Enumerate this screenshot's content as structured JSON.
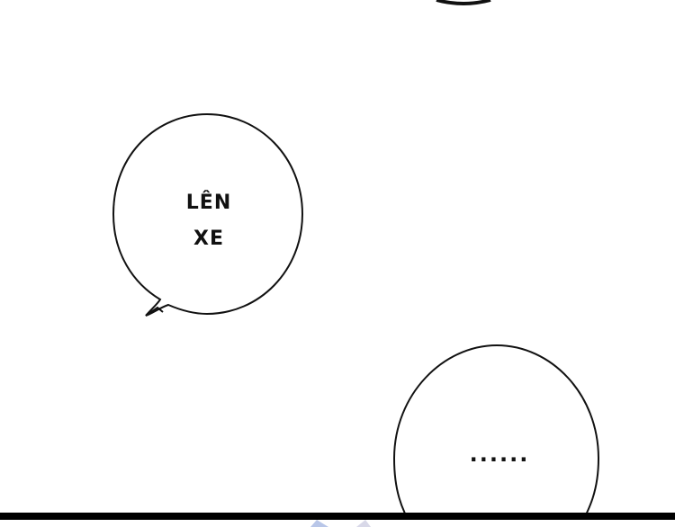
{
  "page": {
    "background": "#ffffff"
  },
  "speech_bubbles": [
    {
      "lines": [
        "LÊN",
        "XE"
      ]
    },
    {
      "lines": [
        "......"
      ]
    }
  ],
  "colors": {
    "ink": "#111111",
    "panel_border": "#000000",
    "bubble_fill": "#ffffff"
  }
}
